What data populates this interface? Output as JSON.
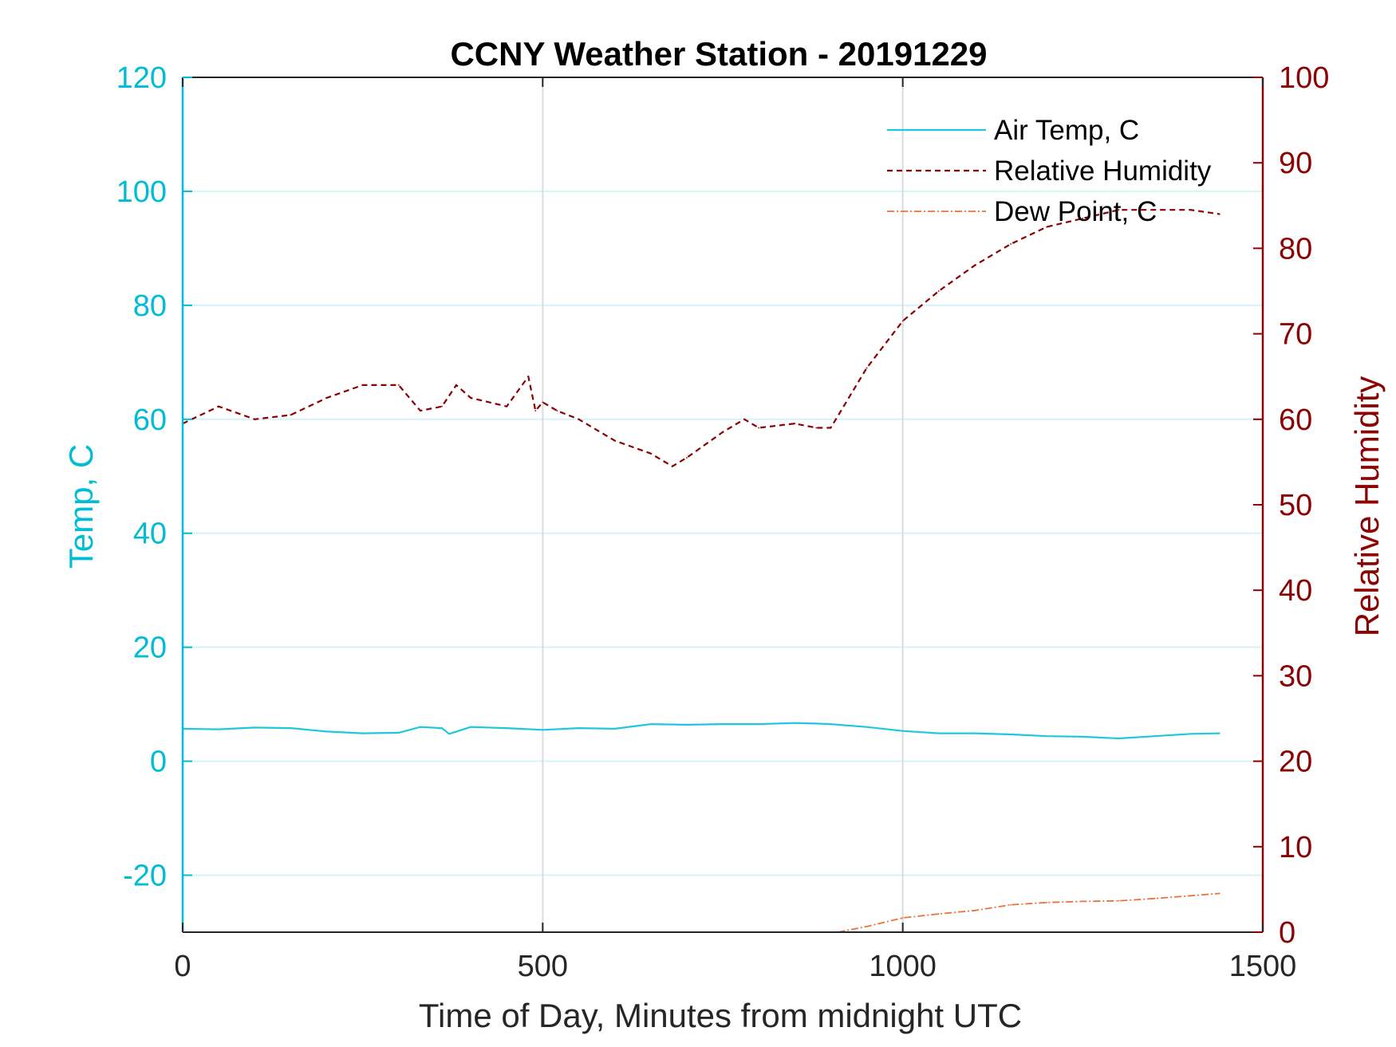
{
  "chart_data": {
    "type": "line",
    "title": "CCNY Weather Station - 20191229",
    "xlabel": "Time of Day, Minutes from midnight UTC",
    "ylabel_left": "Temp, C",
    "ylabel_right": "Relative Humidity",
    "xlim": [
      0,
      1500
    ],
    "ylim_left": [
      -30,
      120
    ],
    "ylim_right": [
      0,
      100
    ],
    "x_ticks": [
      0,
      500,
      1000,
      1500
    ],
    "x_tick_labels": [
      "0",
      "500",
      "1000",
      "1500"
    ],
    "y_left_ticks": [
      -20,
      0,
      20,
      40,
      60,
      80,
      100,
      120
    ],
    "y_left_tick_labels": [
      "-20",
      "0",
      "20",
      "40",
      "60",
      "80",
      "100",
      "120"
    ],
    "y_right_ticks": [
      0,
      10,
      20,
      30,
      40,
      50,
      60,
      70,
      80,
      90,
      100
    ],
    "y_right_tick_labels": [
      "0",
      "10",
      "20",
      "30",
      "40",
      "50",
      "60",
      "70",
      "80",
      "90",
      "100"
    ],
    "grid": true,
    "legend_position": "top-right",
    "colors": {
      "left_axis": "#00BCD4",
      "right_axis": "#8B0000",
      "air_temp": "#1EC8DC",
      "humidity": "#8B0000",
      "dew_point": "#E8743B",
      "grid_h": "#D6F3F8",
      "grid_v": "#D7DCE3"
    },
    "series": [
      {
        "name": "Air Temp, C",
        "axis": "left",
        "style": "solid",
        "x": [
          0,
          50,
          100,
          150,
          200,
          250,
          300,
          330,
          360,
          370,
          400,
          450,
          500,
          550,
          600,
          650,
          700,
          750,
          800,
          850,
          880,
          900,
          950,
          1000,
          1050,
          1100,
          1150,
          1200,
          1250,
          1300,
          1350,
          1400,
          1440
        ],
        "y": [
          5.7,
          5.6,
          5.9,
          5.8,
          5.2,
          4.9,
          5.0,
          6.0,
          5.8,
          4.8,
          6.0,
          5.8,
          5.5,
          5.8,
          5.7,
          6.5,
          6.4,
          6.5,
          6.5,
          6.7,
          6.6,
          6.5,
          6.0,
          5.3,
          4.9,
          4.9,
          4.7,
          4.4,
          4.3,
          4.0,
          4.4,
          4.8,
          4.9
        ]
      },
      {
        "name": "Relative Humidity",
        "axis": "right",
        "style": "dashed",
        "x": [
          0,
          50,
          100,
          150,
          200,
          250,
          300,
          330,
          360,
          380,
          400,
          450,
          480,
          490,
          500,
          520,
          550,
          600,
          650,
          680,
          700,
          750,
          780,
          800,
          850,
          880,
          900,
          950,
          1000,
          1050,
          1100,
          1150,
          1200,
          1250,
          1300,
          1350,
          1400,
          1440
        ],
        "y": [
          59.5,
          61.5,
          60.0,
          60.5,
          62.5,
          64.0,
          64.0,
          61.0,
          61.5,
          64.0,
          62.5,
          61.5,
          65.0,
          61.0,
          62.0,
          61.0,
          60.0,
          57.5,
          56.0,
          54.5,
          55.5,
          58.5,
          60.0,
          59.0,
          59.5,
          59.0,
          59.0,
          66.0,
          71.5,
          75.0,
          78.0,
          80.5,
          82.5,
          83.5,
          84.5,
          84.5,
          84.5,
          84.0
        ]
      },
      {
        "name": "Dew Point, C",
        "axis": "left",
        "style": "dash-dot",
        "x": [
          910,
          950,
          1000,
          1050,
          1100,
          1150,
          1200,
          1250,
          1300,
          1350,
          1400,
          1440
        ],
        "y": [
          -30.0,
          -29.0,
          -27.5,
          -26.8,
          -26.2,
          -25.2,
          -24.8,
          -24.6,
          -24.5,
          -24.1,
          -23.6,
          -23.2
        ]
      }
    ]
  }
}
